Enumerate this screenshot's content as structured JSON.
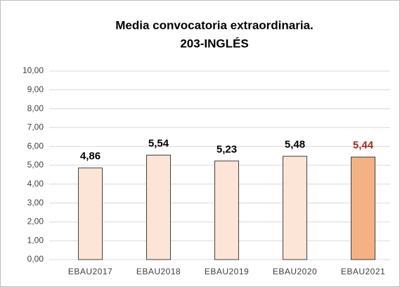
{
  "chart_data": {
    "type": "bar",
    "title": [
      "Media convocatoria extraordinaria.",
      "203-INGLÉS"
    ],
    "categories": [
      "EBAU2017",
      "EBAU2018",
      "EBAU2019",
      "EBAU2020",
      "EBAU2021"
    ],
    "values": [
      4.86,
      5.54,
      5.23,
      5.48,
      5.44
    ],
    "value_labels": [
      "4,86",
      "5,54",
      "5,23",
      "5,48",
      "5,44"
    ],
    "colors": [
      "#fce4d6",
      "#fce4d6",
      "#fce4d6",
      "#fce4d6",
      "#f4b183"
    ],
    "value_label_colors": [
      "#000000",
      "#000000",
      "#000000",
      "#000000",
      "#a52a1a"
    ],
    "ylim": [
      0,
      10
    ],
    "yticks": [
      {
        "value": 0,
        "label": "0,00"
      },
      {
        "value": 1,
        "label": "1,00"
      },
      {
        "value": 2,
        "label": "2,00"
      },
      {
        "value": 3,
        "label": "3,00"
      },
      {
        "value": 4,
        "label": "4,00"
      },
      {
        "value": 5,
        "label": "5,00"
      },
      {
        "value": 6,
        "label": "6,00"
      },
      {
        "value": 7,
        "label": "7,00"
      },
      {
        "value": 8,
        "label": "8,00"
      },
      {
        "value": 9,
        "label": "9,00"
      },
      {
        "value": 10,
        "label": "10,00"
      }
    ],
    "grid": true
  }
}
